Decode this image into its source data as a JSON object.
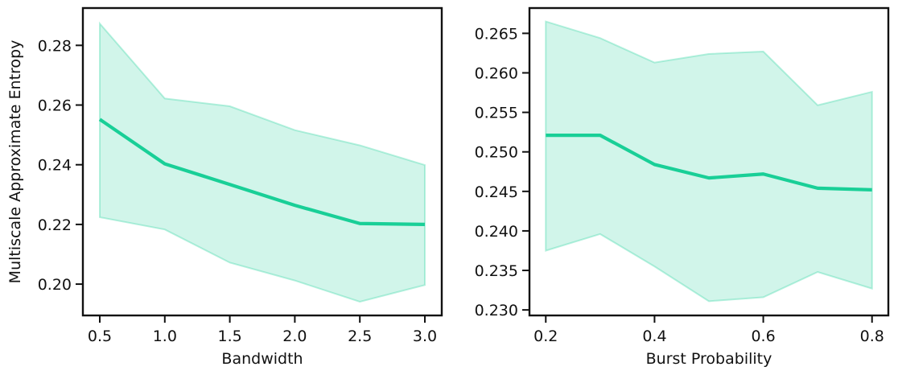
{
  "chart_data": [
    {
      "type": "line",
      "xlabel": "Bandwidth",
      "ylabel": "Multiscale Approximate Entropy",
      "xlim": [
        0.37,
        3.13
      ],
      "ylim": [
        0.1895,
        0.2925
      ],
      "xticks": [
        0.5,
        1.0,
        1.5,
        2.0,
        2.5,
        3.0
      ],
      "xtick_labels": [
        "0.5",
        "1.0",
        "1.5",
        "2.0",
        "2.5",
        "3.0"
      ],
      "yticks": [
        0.2,
        0.22,
        0.24,
        0.26,
        0.28
      ],
      "ytick_labels": [
        "0.20",
        "0.22",
        "0.24",
        "0.26",
        "0.28"
      ],
      "grid": false,
      "color": "#19cf97",
      "series": [
        {
          "x": [
            0.5,
            1.0,
            1.5,
            2.0,
            2.5,
            3.0
          ],
          "y": [
            0.2552,
            0.2403,
            0.2334,
            0.2264,
            0.2203,
            0.22
          ],
          "ci_low": [
            0.2224,
            0.2183,
            0.2072,
            0.2012,
            0.1941,
            0.1997
          ],
          "ci_high": [
            0.2873,
            0.2622,
            0.2596,
            0.2516,
            0.2465,
            0.2399
          ]
        }
      ]
    },
    {
      "type": "line",
      "xlabel": "Burst Probability",
      "ylabel": "",
      "xlim": [
        0.17,
        0.83
      ],
      "ylim": [
        0.2293,
        0.2682
      ],
      "xticks": [
        0.2,
        0.4,
        0.6,
        0.8
      ],
      "xtick_labels": [
        "0.2",
        "0.4",
        "0.6",
        "0.8"
      ],
      "yticks": [
        0.23,
        0.235,
        0.24,
        0.245,
        0.25,
        0.255,
        0.26,
        0.265
      ],
      "ytick_labels": [
        "0.230",
        "0.235",
        "0.240",
        "0.245",
        "0.250",
        "0.255",
        "0.260",
        "0.265"
      ],
      "grid": false,
      "color": "#19cf97",
      "series": [
        {
          "x": [
            0.2,
            0.3,
            0.4,
            0.5,
            0.6,
            0.7,
            0.8
          ],
          "y": [
            0.2521,
            0.2521,
            0.2484,
            0.2467,
            0.2472,
            0.2454,
            0.2452
          ],
          "ci_low": [
            0.2375,
            0.2396,
            0.2355,
            0.2311,
            0.2316,
            0.2348,
            0.2327
          ],
          "ci_high": [
            0.2665,
            0.2644,
            0.2613,
            0.2624,
            0.2627,
            0.2559,
            0.2576
          ]
        }
      ]
    }
  ]
}
